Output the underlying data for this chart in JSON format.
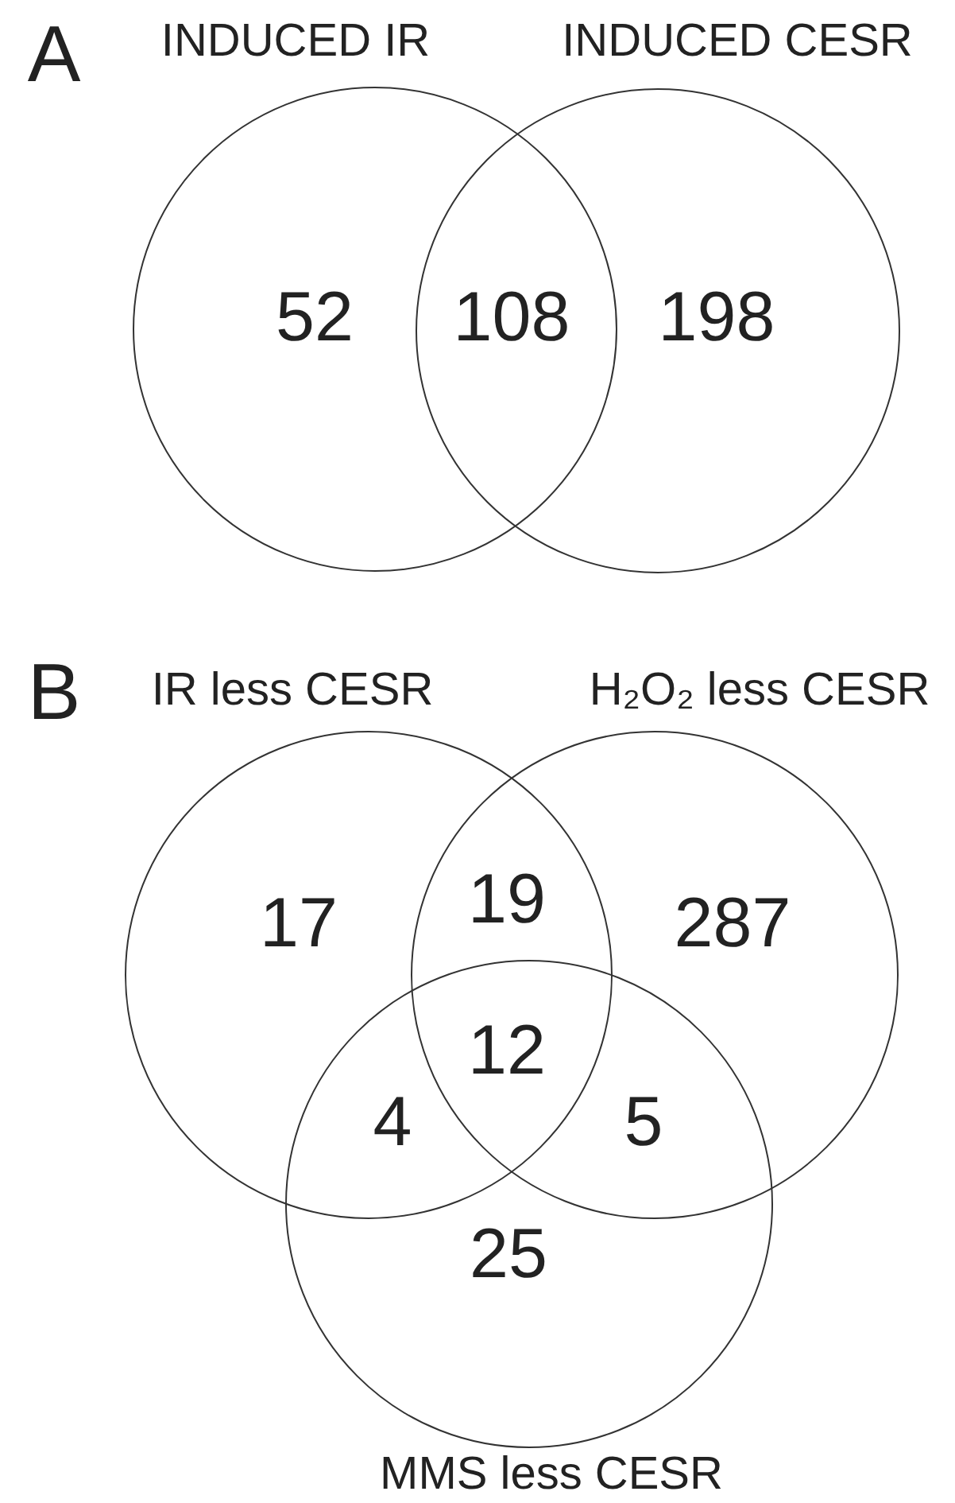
{
  "chart_data": [
    {
      "type": "other",
      "title": "A",
      "annotations": [
        "INDUCED IR",
        "INDUCED CESR"
      ],
      "categories": [
        null,
        null,
        null
      ],
      "values": [
        52,
        108,
        198
      ],
      "data_labels": true
    },
    {
      "type": "other",
      "title": "B",
      "annotations": [
        "IR less CESR",
        "H₂O₂ less CESR",
        "MMS less CESR"
      ],
      "categories": [
        null,
        null,
        null,
        null,
        null,
        null,
        null
      ],
      "values": [
        17,
        19,
        287,
        4,
        12,
        5,
        25
      ],
      "data_labels": true
    }
  ]
}
